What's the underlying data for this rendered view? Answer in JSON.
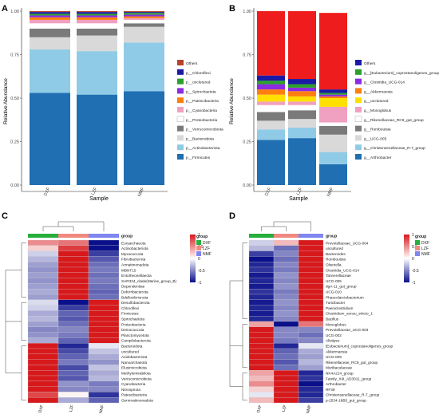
{
  "figure": {
    "colors": {
      "heat_high": "#d7191c",
      "heat_mid": "#ffffff",
      "heat_low": "#0a0f8a",
      "group_DXF": "#27ae3c",
      "group_LZF": "#f08a80",
      "group_NMF": "#7f86f0"
    }
  },
  "chart_data": [
    {
      "type": "bar",
      "stacked": true,
      "panel_label": "A",
      "xlabel": "Sample",
      "ylabel": "Relative Abundance",
      "categories": [
        "DXF",
        "LZF",
        "NMF"
      ],
      "ylim": [
        0,
        1
      ],
      "yticks": [
        "0.00",
        "0.25",
        "0.50",
        "0.75",
        "1.00"
      ],
      "grid": false,
      "legend_position": "right",
      "series": [
        {
          "name": "p__Firmicutes",
          "color": "#1f6fb2",
          "values": [
            0.53,
            0.52,
            0.54
          ]
        },
        {
          "name": "p__Actinobacteriota",
          "color": "#8fcbe6",
          "values": [
            0.25,
            0.25,
            0.28
          ]
        },
        {
          "name": "p__Bacteroidota",
          "color": "#d9d9d9",
          "values": [
            0.07,
            0.09,
            0.09
          ]
        },
        {
          "name": "p__Verrucomicrobiota",
          "color": "#7a7a7a",
          "values": [
            0.05,
            0.04,
            0.02
          ]
        },
        {
          "name": "p__Proteobacteria",
          "color": "#ffffff",
          "values": [
            0.03,
            0.03,
            0.02
          ]
        },
        {
          "name": "p__Cyanobacteria",
          "color": "#f0a0c0",
          "values": [
            0.02,
            0.02,
            0.01
          ]
        },
        {
          "name": "p__Patescibacteria",
          "color": "#ff7f0e",
          "values": [
            0.015,
            0.015,
            0.01
          ]
        },
        {
          "name": "p__Spirochaetota",
          "color": "#8b2be2",
          "values": [
            0.01,
            0.01,
            0.01
          ]
        },
        {
          "name": "p__unclutured",
          "color": "#2ca02c",
          "values": [
            0.01,
            0.01,
            0.01
          ]
        },
        {
          "name": "p__Chloroflexi",
          "color": "#1a1aa6",
          "values": [
            0.01,
            0.01,
            0.005
          ]
        },
        {
          "name": "Others",
          "color": "#b5442a",
          "values": [
            0.005,
            0.005,
            0.005
          ]
        }
      ]
    },
    {
      "type": "bar",
      "stacked": true,
      "panel_label": "B",
      "xlabel": "Sample",
      "ylabel": "Relative Abundance",
      "categories": [
        "DXF",
        "LZF",
        "NMF"
      ],
      "ylim": [
        0,
        1
      ],
      "yticks": [
        "0.00",
        "0.25",
        "0.50",
        "0.75",
        "1.00"
      ],
      "grid": false,
      "legend_position": "right",
      "series": [
        {
          "name": "g__Arthrobacter",
          "color": "#1f6fb2",
          "values": [
            0.26,
            0.27,
            0.12
          ]
        },
        {
          "name": "g__Christensenellaceae_R-7_group",
          "color": "#8fcbe6",
          "values": [
            0.06,
            0.06,
            0.07
          ]
        },
        {
          "name": "g__UCG-005",
          "color": "#d9d9d9",
          "values": [
            0.05,
            0.05,
            0.1
          ]
        },
        {
          "name": "g__Romboutsia",
          "color": "#7a7a7a",
          "values": [
            0.05,
            0.05,
            0.05
          ]
        },
        {
          "name": "g__Rikenellaceae_RC9_gut_group",
          "color": "#ffffff",
          "values": [
            0.04,
            0.03,
            0.02
          ]
        },
        {
          "name": "g__Monoglobus",
          "color": "#f0a0c0",
          "values": [
            0.02,
            0.02,
            0.09
          ]
        },
        {
          "name": "g__unclutured",
          "color": "#ffe000",
          "values": [
            0.04,
            0.03,
            0.05
          ]
        },
        {
          "name": "g__Akkermansia",
          "color": "#ff7f0e",
          "values": [
            0.03,
            0.03,
            0.01
          ]
        },
        {
          "name": "g__Clostridia_UCG-014",
          "color": "#8b2be2",
          "values": [
            0.03,
            0.02,
            0.01
          ]
        },
        {
          "name": "g__[Eubacterium]_coprostanoligenes_group",
          "color": "#2ca02c",
          "values": [
            0.02,
            0.02,
            0.01
          ]
        },
        {
          "name": "Others",
          "color": "#1a1aa6",
          "values": [
            0.03,
            0.03,
            0.02
          ]
        },
        {
          "name": "",
          "color": "#ee1c1c",
          "values": [
            0.37,
            0.39,
            0.44
          ]
        }
      ]
    },
    {
      "type": "heatmap",
      "panel_label": "C",
      "columns": [
        "DXF",
        "LZF",
        "NMF"
      ],
      "annotation_label": "group",
      "legend_title": "group",
      "legend_entries": [
        "DXF",
        "LZF",
        "NMF"
      ],
      "colorbar_ticks": [
        "1",
        "0.5",
        "0",
        "-0.5",
        "-1"
      ],
      "rows": [
        "Euryarchaeota",
        "Actinobacteriota",
        "Myxococcota",
        "Fibrobacterota",
        "Armatimonadota",
        "MBNT15",
        "Entotheonellaeota",
        "SAR324_clade(Marine_group_B)",
        "Dependentiae",
        "Deferribacterota",
        "Bdellovibrionota",
        "Desulfobacterota",
        "Chloroflexi",
        "Firmicutes",
        "Spirochaetota",
        "Proteobacteria",
        "Deinococcota",
        "Planctomycetota",
        "Campilobacterota",
        "Bacteroidota",
        "uncultured",
        "Acidobacteriota",
        "Nanoarchaeota",
        "Elusimicrobiota",
        "Methylomirabilota",
        "Verrucomicrobiota",
        "Cyanobacteria",
        "Nitrospirota",
        "Patescibacteria",
        "Gemmatimonadota"
      ],
      "values": [
        [
          0.5,
          0.6,
          -1
        ],
        [
          0.2,
          0.85,
          -1
        ],
        [
          -0.2,
          1,
          -0.8
        ],
        [
          -0.3,
          1,
          -0.7
        ],
        [
          -0.4,
          1,
          -0.6
        ],
        [
          -0.45,
          1,
          -0.55
        ],
        [
          -0.4,
          1,
          -0.6
        ],
        [
          -0.45,
          1,
          -0.55
        ],
        [
          -0.4,
          1,
          -0.6
        ],
        [
          -0.35,
          1,
          -0.65
        ],
        [
          -0.4,
          1,
          -0.6
        ],
        [
          -0.15,
          -1,
          1
        ],
        [
          -0.2,
          -0.8,
          1
        ],
        [
          -0.35,
          -0.65,
          1
        ],
        [
          -0.3,
          -0.7,
          1
        ],
        [
          -0.4,
          -0.6,
          1
        ],
        [
          -0.5,
          -0.5,
          1
        ],
        [
          -0.45,
          -0.55,
          1
        ],
        [
          -0.35,
          -0.65,
          1
        ],
        [
          1,
          -0.9,
          -0.1
        ],
        [
          1,
          -0.75,
          -0.25
        ],
        [
          1,
          -0.65,
          -0.35
        ],
        [
          1,
          -0.55,
          -0.45
        ],
        [
          1,
          -0.75,
          -0.25
        ],
        [
          1,
          -0.65,
          -0.35
        ],
        [
          1,
          -0.7,
          -0.3
        ],
        [
          1,
          -0.45,
          -0.55
        ],
        [
          1,
          -0.5,
          -0.5
        ],
        [
          0.8,
          0.05,
          -0.85
        ],
        [
          1,
          -0.35,
          -0.65
        ]
      ]
    },
    {
      "type": "heatmap",
      "panel_label": "D",
      "columns": [
        "DXF",
        "LZF",
        "NMF"
      ],
      "annotation_label": "group",
      "legend_title": "group",
      "legend_entries": [
        "DXF",
        "LZF",
        "NMF"
      ],
      "colorbar_ticks": [
        "1",
        "0.5",
        "0",
        "-0.5",
        "-1"
      ],
      "rows": [
        "Prevotellaceae_UCG-004",
        "uncultured",
        "Bacteroides",
        "Romboutsia",
        "Olsenella",
        "Clostridia_UCG-014",
        "Tannerellaceae",
        "UCG-005",
        "dgA-11_gut_group",
        "UCG-010",
        "Phascolarctobacterium",
        "Turicibacter",
        "Paeniclostridium",
        "Clostridium_sensu_stricto_1",
        "Bacillus",
        "Monoglobus",
        "Prevotellaceae_UCG-003",
        "UCG-002",
        "Alistipes",
        "[Eubacterium]_coprostanoligenes_group",
        "Akkermansia",
        "UCG-009",
        "Rikenellaceae_RC9_gut_group",
        "Muribaculaceae",
        "NK4A214_group",
        "Family_XIII_AD3011_group",
        "Arthrobacter",
        "RF39",
        "Christensenellaceae_R-7_group",
        "p-2534-18B5_gut_group"
      ],
      "values": [
        [
          -0.2,
          0.3,
          1
        ],
        [
          -0.3,
          -0.6,
          1
        ],
        [
          -0.8,
          -0.5,
          1
        ],
        [
          -1,
          -0.6,
          1
        ],
        [
          -0.9,
          -0.5,
          1
        ],
        [
          -0.85,
          -0.55,
          1
        ],
        [
          -0.95,
          -0.45,
          1
        ],
        [
          -0.9,
          -0.5,
          1
        ],
        [
          -0.95,
          -0.45,
          1
        ],
        [
          -0.85,
          -0.55,
          1
        ],
        [
          -0.9,
          -0.5,
          1
        ],
        [
          -0.95,
          -0.45,
          1
        ],
        [
          -0.9,
          -0.5,
          1
        ],
        [
          -0.95,
          -0.45,
          1
        ],
        [
          -0.9,
          -0.5,
          1
        ],
        [
          0.4,
          -1,
          0.6
        ],
        [
          1,
          -0.5,
          -0.5
        ],
        [
          1,
          -0.5,
          -0.6
        ],
        [
          1,
          -0.55,
          -0.5
        ],
        [
          1,
          -0.9,
          -0.1
        ],
        [
          1,
          -0.65,
          -0.35
        ],
        [
          1,
          -0.6,
          -0.4
        ],
        [
          1,
          -0.7,
          -0.3
        ],
        [
          1,
          -0.6,
          -0.4
        ],
        [
          0.4,
          1,
          -0.9
        ],
        [
          0.3,
          1,
          -0.85
        ],
        [
          0.5,
          1,
          -1
        ],
        [
          0.2,
          1,
          -0.9
        ],
        [
          -0.1,
          1,
          -0.9
        ],
        [
          0.3,
          1,
          -0.8
        ]
      ]
    }
  ]
}
